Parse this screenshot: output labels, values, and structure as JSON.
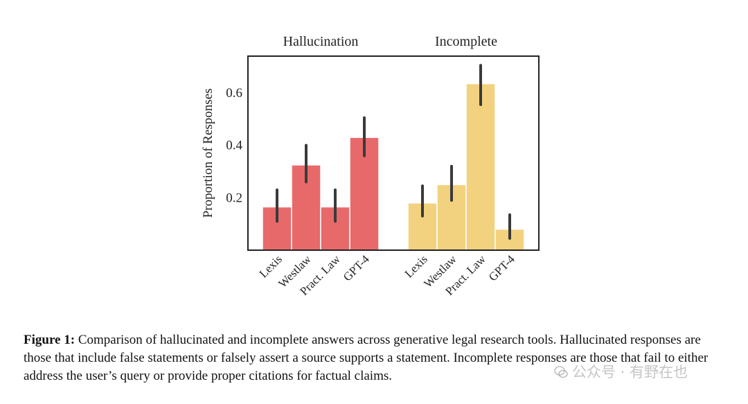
{
  "chart_data": {
    "type": "bar",
    "ylabel": "Proportion of Responses",
    "ylim": [
      0.0,
      0.74
    ],
    "yticks": [
      0.2,
      0.4,
      0.6
    ],
    "ytick_labels": [
      "0.2",
      "0.4",
      "0.6"
    ],
    "grid": false,
    "panels": [
      {
        "title": "Hallucination",
        "color": "#E8696A",
        "categories": [
          "Lexis",
          "Westlaw",
          "Pract. Law",
          "GPT-4"
        ],
        "values": [
          0.165,
          0.325,
          0.165,
          0.43
        ],
        "error_low": [
          0.11,
          0.26,
          0.11,
          0.36
        ],
        "error_high": [
          0.23,
          0.4,
          0.23,
          0.505
        ]
      },
      {
        "title": "Incomplete",
        "color": "#F2D27E",
        "categories": [
          "Lexis",
          "Westlaw",
          "Pract. Law",
          "GPT-4"
        ],
        "values": [
          0.18,
          0.25,
          0.635,
          0.08
        ],
        "error_low": [
          0.13,
          0.19,
          0.555,
          0.045
        ],
        "error_high": [
          0.245,
          0.32,
          0.705,
          0.135
        ]
      }
    ]
  },
  "caption": {
    "label": "Figure 1:",
    "text": " Comparison of hallucinated and incomplete answers across generative legal research tools. Hallucinated responses are those that include false statements or falsely assert a source supports a statement. Incomplete responses are those that fail to either address the user’s query or provide proper citations for factual claims."
  },
  "watermark": {
    "text": "公众号 · 有野在也"
  }
}
